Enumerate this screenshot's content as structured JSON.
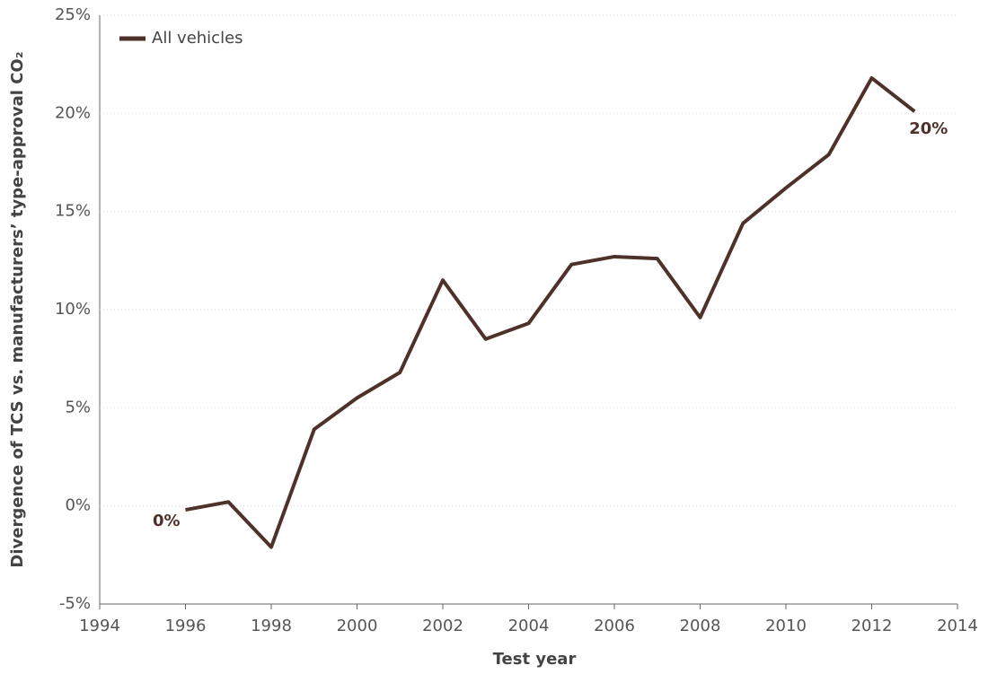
{
  "chart_data": {
    "type": "line",
    "x": [
      1996,
      1997,
      1998,
      1999,
      2000,
      2001,
      2002,
      2003,
      2004,
      2005,
      2006,
      2007,
      2008,
      2009,
      2010,
      2011,
      2012,
      2013
    ],
    "series": [
      {
        "name": "All vehicles",
        "color": "#4e3229",
        "values": [
          -0.2,
          0.2,
          -2.1,
          3.9,
          5.5,
          6.8,
          11.5,
          8.5,
          9.3,
          12.3,
          12.7,
          12.6,
          9.6,
          14.4,
          16.2,
          17.9,
          21.8,
          20.1
        ],
        "value_labels": [
          "0%",
          null,
          null,
          null,
          null,
          null,
          null,
          null,
          null,
          null,
          null,
          null,
          null,
          null,
          null,
          null,
          null,
          "20%"
        ]
      }
    ],
    "xlabel": "Test year",
    "ylabel": "Divergence of TCS vs. manufacturers’ type-approval CO₂",
    "xlim": [
      1994,
      2014
    ],
    "xticks": [
      1994,
      1996,
      1998,
      2000,
      2002,
      2004,
      2006,
      2008,
      2010,
      2012,
      2014
    ],
    "ylim": [
      -5,
      25
    ],
    "yticks": [
      {
        "value": -5,
        "label": "-5%"
      },
      {
        "value": 0,
        "label": "0%"
      },
      {
        "value": 5,
        "label": "5%"
      },
      {
        "value": 10,
        "label": "10%"
      },
      {
        "value": 15,
        "label": "15%"
      },
      {
        "value": 20,
        "label": "20%"
      },
      {
        "value": 25,
        "label": "25%"
      }
    ],
    "grid": true,
    "legend": "upper-left"
  }
}
